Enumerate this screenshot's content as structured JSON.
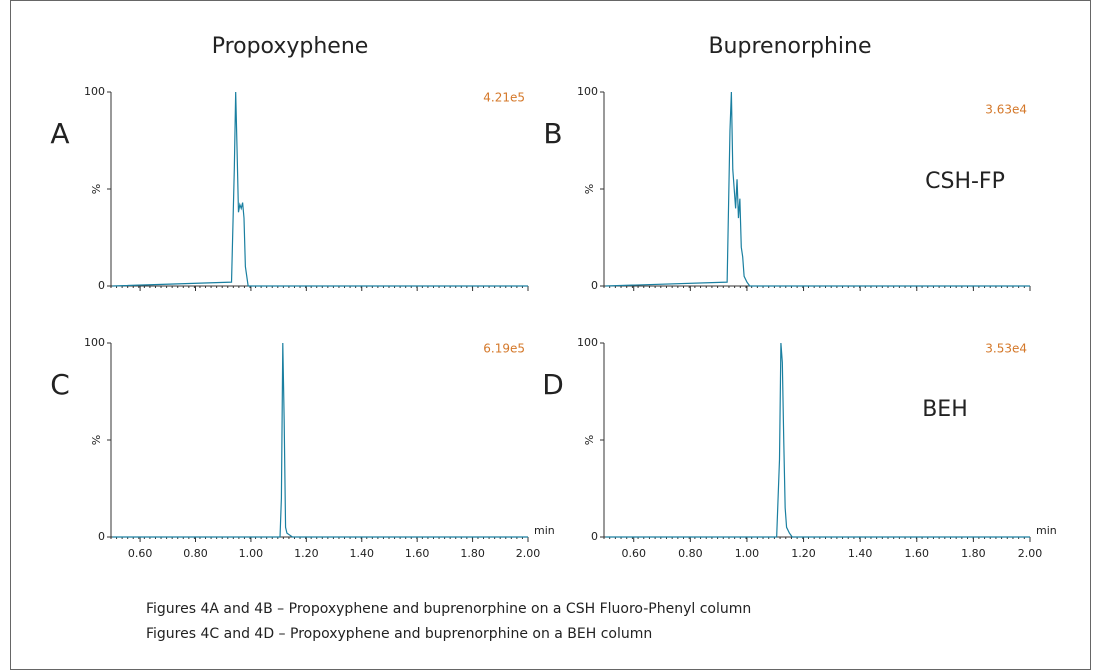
{
  "figure": {
    "column_titles": [
      "Propoxyphene",
      "Buprenorphine"
    ],
    "row_labels": [
      "CSH-FP",
      "BEH"
    ],
    "captions": [
      "Figures 4A and 4B – Propoxyphene and buprenorphine on a CSH Fluoro-Phenyl column",
      "Figures 4C and 4D – Propoxyphene and buprenorphine on a BEH column"
    ]
  },
  "chart_data": [
    {
      "type": "line",
      "label": "A",
      "annotation": "4.21e5",
      "color": "#1a7fa0",
      "x": [
        0.5,
        0.93,
        0.94,
        0.945,
        0.95,
        0.955,
        0.96,
        0.965,
        0.97,
        0.975,
        0.98,
        0.99,
        2.0
      ],
      "values": [
        0,
        2,
        60,
        100,
        70,
        38,
        42,
        40,
        43,
        35,
        10,
        0,
        0
      ],
      "xlim": [
        0.495,
        2.0
      ],
      "ylim": [
        0,
        100
      ],
      "xticks": [
        0.6,
        0.8,
        1.0,
        1.2,
        1.4,
        1.6,
        1.8,
        2.0
      ],
      "yticks": [
        0,
        {
          "value": 50,
          "label": "%"
        },
        100
      ]
    },
    {
      "type": "line",
      "label": "B",
      "annotation": "3.63e4",
      "color": "#1a7fa0",
      "x": [
        0.5,
        0.93,
        0.94,
        0.945,
        0.95,
        0.955,
        0.96,
        0.965,
        0.97,
        0.975,
        0.98,
        0.985,
        0.99,
        1.0,
        1.01,
        2.0
      ],
      "values": [
        0,
        2,
        80,
        100,
        60,
        50,
        40,
        55,
        35,
        45,
        20,
        15,
        5,
        2,
        0,
        0
      ],
      "xlim": [
        0.495,
        2.0
      ],
      "ylim": [
        0,
        100
      ],
      "xticks": [
        0.6,
        0.8,
        1.0,
        1.2,
        1.4,
        1.6,
        1.8,
        2.0
      ],
      "yticks": [
        0,
        {
          "value": 50,
          "label": "%"
        },
        100
      ]
    },
    {
      "type": "line",
      "label": "C",
      "annotation": "6.19e5",
      "color": "#1a7fa0",
      "x_label": "min",
      "x": [
        0.5,
        1.105,
        1.11,
        1.115,
        1.12,
        1.125,
        1.13,
        1.14,
        1.15,
        2.0
      ],
      "values": [
        0,
        0,
        20,
        100,
        60,
        5,
        2,
        1,
        0,
        0
      ],
      "xlim": [
        0.495,
        2.0
      ],
      "ylim": [
        0,
        100
      ],
      "xticks": [
        {
          "value": 0.6,
          "label": "0.60"
        },
        {
          "value": 0.8,
          "label": "0.80"
        },
        {
          "value": 1.0,
          "label": "1.00"
        },
        {
          "value": 1.2,
          "label": "1.20"
        },
        {
          "value": 1.4,
          "label": "1.40"
        },
        {
          "value": 1.6,
          "label": "1.60"
        },
        {
          "value": 1.8,
          "label": "1.80"
        },
        {
          "value": 2.0,
          "label": "2.00"
        }
      ],
      "yticks": [
        0,
        {
          "value": 50,
          "label": "%"
        },
        100
      ]
    },
    {
      "type": "line",
      "label": "D",
      "annotation": "3.53e4",
      "color": "#1a7fa0",
      "x_label": "min",
      "x": [
        0.5,
        1.105,
        1.115,
        1.12,
        1.125,
        1.13,
        1.135,
        1.14,
        1.15,
        1.16,
        2.0
      ],
      "values": [
        0,
        0,
        40,
        100,
        90,
        50,
        15,
        5,
        2,
        0,
        0
      ],
      "xlim": [
        0.495,
        2.0
      ],
      "ylim": [
        0,
        100
      ],
      "xticks": [
        {
          "value": 0.6,
          "label": "0.60"
        },
        {
          "value": 0.8,
          "label": "0.80"
        },
        {
          "value": 1.0,
          "label": "1.00"
        },
        {
          "value": 1.2,
          "label": "1.20"
        },
        {
          "value": 1.4,
          "label": "1.40"
        },
        {
          "value": 1.6,
          "label": "1.60"
        },
        {
          "value": 1.8,
          "label": "1.80"
        },
        {
          "value": 2.0,
          "label": "2.00"
        }
      ],
      "yticks": [
        0,
        {
          "value": 50,
          "label": "%"
        },
        100
      ]
    }
  ]
}
